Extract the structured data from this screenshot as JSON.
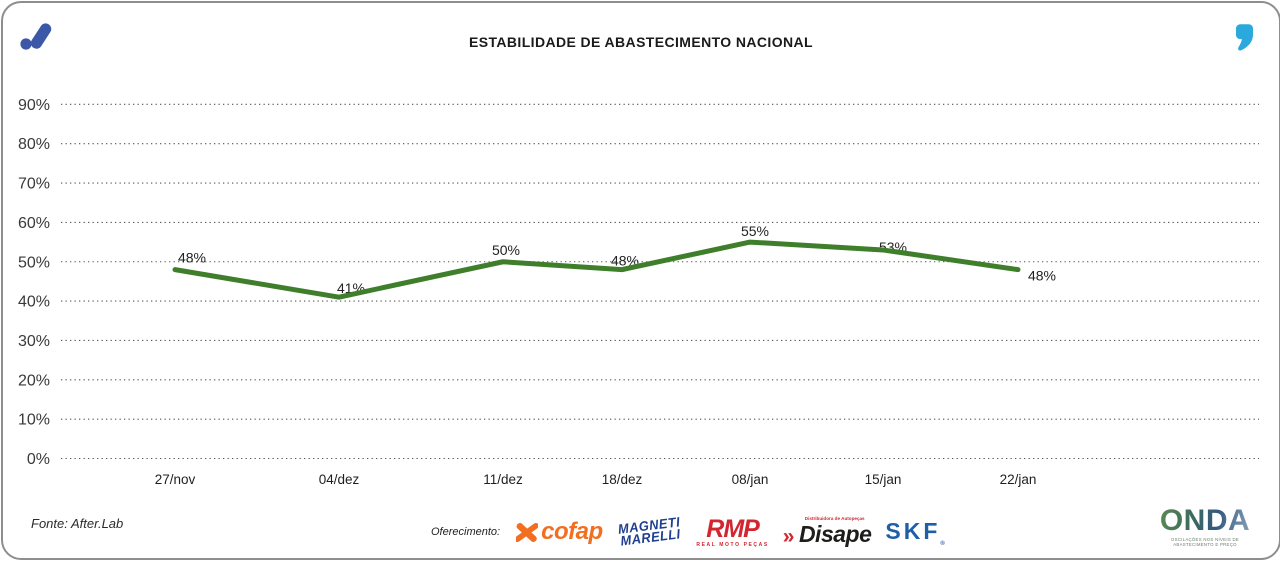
{
  "header": {
    "title": "ESTABILIDADE DE ABASTECIMENTO NACIONAL"
  },
  "chart_data": {
    "type": "line",
    "title": "ESTABILIDADE DE ABASTECIMENTO NACIONAL",
    "categories": [
      "27/nov",
      "04/dez",
      "11/dez",
      "18/dez",
      "08/jan",
      "15/jan",
      "22/jan"
    ],
    "values": [
      48,
      41,
      50,
      48,
      55,
      53,
      48
    ],
    "point_labels": [
      "48%",
      "41%",
      "50%",
      "48%",
      "55%",
      "53%",
      "48%"
    ],
    "yticks": [
      "0%",
      "10%",
      "20%",
      "30%",
      "40%",
      "50%",
      "60%",
      "70%",
      "80%",
      "90%"
    ],
    "ylim": [
      0,
      90
    ],
    "xlabel": "",
    "ylabel": "",
    "grid": "horizontal-dotted",
    "legend": "none",
    "line_color": "#3F7E2B"
  },
  "footer": {
    "source": "Fonte: After.Lab",
    "sponsor_label": "Oferecimento:",
    "cofap": "cofap",
    "magneti_line1": "MAGNETI",
    "magneti_line2": "MARELLI",
    "rmp": "RMP",
    "rmp_sub": "REAL MOTO PEÇAS",
    "disape_sub": "Distribuidora de Autopeças",
    "disape_mark": "»",
    "disape": "Disape",
    "skf": "SKF",
    "skf_reg": "®",
    "onda": "ONDA",
    "onda_caption": "OSCILAÇÕES NOS NÍVEIS DE ABASTECIMENTO E PREÇO"
  },
  "colors": {
    "line": "#3F7E2B",
    "brand_blue": "#3A57A8",
    "brand_teal": "#2BA9DC",
    "cofap": "#F26F21",
    "magneti": "#1E3F8F",
    "rmp": "#D22630",
    "disape_text": "#1D1D1B",
    "disape_accent": "#D22630",
    "skf": "#1F5FA8"
  }
}
